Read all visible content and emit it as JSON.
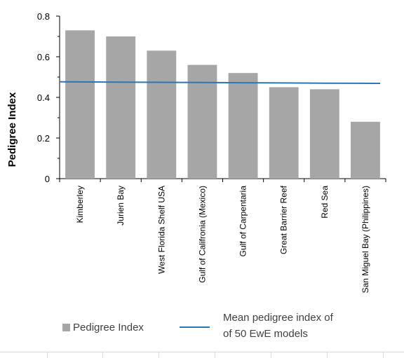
{
  "chart_data": {
    "type": "bar",
    "ylabel": "Pedigree Index",
    "xlabel": "",
    "ylim": [
      0,
      0.8
    ],
    "yticks": [
      0,
      0.2,
      0.4,
      0.6,
      0.8
    ],
    "ytick_labels": [
      "0",
      "0.2",
      "0.4",
      "0.6",
      "0.8"
    ],
    "categories": [
      "Kimberley",
      "Jurien Bay",
      "West Florida Shelf USA",
      "Gulf of Califronia (Mexico)",
      "Gulf of Carpentaria",
      "Great Barrier Reef",
      "Red Sea",
      "San Miguel Bay (Philippines)"
    ],
    "series": [
      {
        "name": "Pedigree Index",
        "type": "bar",
        "color": "#a6a6a6",
        "values": [
          0.73,
          0.7,
          0.63,
          0.56,
          0.52,
          0.45,
          0.44,
          0.28
        ]
      },
      {
        "name": "Mean pedigree index of of 50 EwE models",
        "type": "line",
        "color": "#2e75b6",
        "values": [
          0.477,
          0.475,
          0.474,
          0.473,
          0.472,
          0.471,
          0.47,
          0.469
        ]
      }
    ],
    "grid": false,
    "legend_position": "bottom"
  },
  "legend": {
    "bar_label": "Pedigree Index",
    "line_label_1": "Mean pedigree index of",
    "line_label_2": "of 50 EwE models"
  }
}
